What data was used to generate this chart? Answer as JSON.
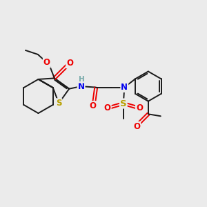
{
  "background_color": "#ebebeb",
  "bond_color": "#1a1a1a",
  "S_color": "#b8a000",
  "N_color": "#0000ee",
  "O_color": "#ee0000",
  "H_color": "#7aabab",
  "figsize": [
    3.0,
    3.0
  ],
  "dpi": 100,
  "xlim": [
    0,
    10
  ],
  "ylim": [
    0,
    10
  ]
}
